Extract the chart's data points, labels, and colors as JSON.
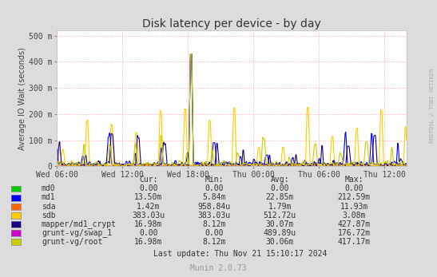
{
  "title": "Disk latency per device - by day",
  "ylabel": "Average IO Wait (seconds)",
  "background_color": "#DCDCDC",
  "plot_bg_color": "#FFFFFF",
  "grid_color": "#FF9999",
  "xticklabels": [
    "Wed 06:00",
    "Wed 12:00",
    "Wed 18:00",
    "Thu 00:00",
    "Thu 06:00",
    "Thu 12:00"
  ],
  "yticks": [
    0,
    0.1,
    0.2,
    0.3,
    0.4,
    0.5
  ],
  "yticklabels": [
    "0",
    "100 m",
    "200 m",
    "300 m",
    "400 m",
    "500 m"
  ],
  "ylim": [
    0,
    0.52
  ],
  "series": [
    {
      "name": "md0",
      "color": "#00CC00",
      "lw": 0.8
    },
    {
      "name": "md1",
      "color": "#0000FF",
      "lw": 0.8
    },
    {
      "name": "sda",
      "color": "#FF6600",
      "lw": 0.8
    },
    {
      "name": "sdb",
      "color": "#FFCC00",
      "lw": 0.8
    },
    {
      "name": "mapper/md1_crypt",
      "color": "#1A0082",
      "lw": 0.8
    },
    {
      "name": "grunt-vg/swap_1",
      "color": "#CC00CC",
      "lw": 0.8
    },
    {
      "name": "grunt-vg/root",
      "color": "#CCCC00",
      "lw": 0.8
    }
  ],
  "legend_items": [
    {
      "label": "md0",
      "color": "#00CC00"
    },
    {
      "label": "md1",
      "color": "#0000FF"
    },
    {
      "label": "sda",
      "color": "#FF6600"
    },
    {
      "label": "sdb",
      "color": "#FFCC00"
    },
    {
      "label": "mapper/md1_crypt",
      "color": "#1A0082"
    },
    {
      "label": "grunt-vg/swap_1",
      "color": "#CC00CC"
    },
    {
      "label": "grunt-vg/root",
      "color": "#CCCC00"
    }
  ],
  "table_headers": [
    "Cur:",
    "Min:",
    "Avg:",
    "Max:"
  ],
  "table_data": [
    [
      "0.00",
      "0.00",
      "0.00",
      "0.00"
    ],
    [
      "13.50m",
      "5.84m",
      "22.85m",
      "212.59m"
    ],
    [
      "1.42m",
      "958.84u",
      "1.79m",
      "11.93m"
    ],
    [
      "383.03u",
      "383.03u",
      "512.72u",
      "3.08m"
    ],
    [
      "16.98m",
      "8.12m",
      "30.07m",
      "427.87m"
    ],
    [
      "0.00",
      "0.00",
      "489.89u",
      "176.72m"
    ],
    [
      "16.98m",
      "8.12m",
      "30.06m",
      "417.17m"
    ]
  ],
  "last_update": "Last update: Thu Nov 21 15:10:17 2024",
  "munin_version": "Munin 2.0.73",
  "watermark": "RRDTOOL / TOBI OETIKER"
}
